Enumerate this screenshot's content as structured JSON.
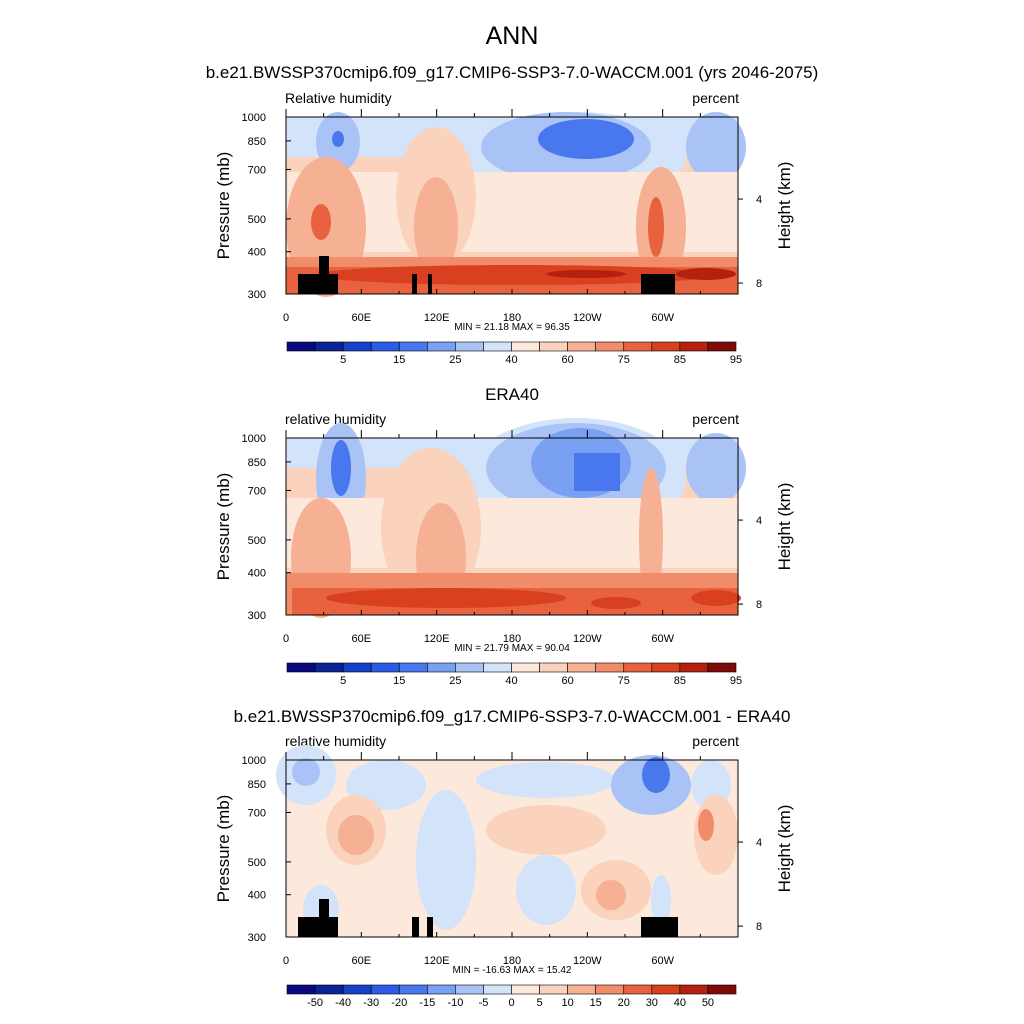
{
  "figure_title": "ANN",
  "chart_data": [
    {
      "type": "heatmap",
      "title": "b.e21.BWSSP370cmip6.f09_g17.CMIP6-SSP3-7.0-WACCM.001 (yrs 2046-2075)",
      "left_label": "Relative humidity",
      "right_label": "percent",
      "ylabel": "Pressure (mb)",
      "ylabel_right": "Height (km)",
      "y_ticks": [
        "300",
        "400",
        "500",
        "700",
        "850",
        "1000"
      ],
      "y_tick_values": [
        300,
        400,
        500,
        700,
        850,
        1000
      ],
      "height_ticks": [
        "8",
        "4"
      ],
      "height_tick_values": [
        8,
        4
      ],
      "x_ticks": [
        "0",
        "60E",
        "120E",
        "180",
        "120W",
        "60W"
      ],
      "x_tick_values": [
        0,
        60,
        120,
        180,
        240,
        300
      ],
      "xlim": [
        0,
        360
      ],
      "ylim": [
        1000,
        300
      ],
      "stats": "MIN =  21.18  MAX =  96.35",
      "min": 21.18,
      "max": 96.35,
      "colorbar_labels": [
        "5",
        "15",
        "25",
        "40",
        "60",
        "75",
        "85",
        "95"
      ],
      "colorbar_levels": [
        5,
        10,
        15,
        20,
        25,
        30,
        40,
        50,
        60,
        65,
        70,
        75,
        80,
        85,
        90,
        95
      ],
      "terrain_masked": true
    },
    {
      "type": "heatmap",
      "title": "ERA40",
      "left_label": "relative humidity",
      "right_label": "percent",
      "ylabel": "Pressure (mb)",
      "ylabel_right": "Height (km)",
      "y_ticks": [
        "300",
        "400",
        "500",
        "700",
        "850",
        "1000"
      ],
      "y_tick_values": [
        300,
        400,
        500,
        700,
        850,
        1000
      ],
      "height_ticks": [
        "8",
        "4"
      ],
      "height_tick_values": [
        8,
        4
      ],
      "x_ticks": [
        "0",
        "60E",
        "120E",
        "180",
        "120W",
        "60W"
      ],
      "x_tick_values": [
        0,
        60,
        120,
        180,
        240,
        300
      ],
      "xlim": [
        0,
        360
      ],
      "ylim": [
        1000,
        300
      ],
      "stats": "MIN =  21.79  MAX =  90.04",
      "min": 21.79,
      "max": 90.04,
      "colorbar_labels": [
        "5",
        "15",
        "25",
        "40",
        "60",
        "75",
        "85",
        "95"
      ],
      "colorbar_levels": [
        5,
        10,
        15,
        20,
        25,
        30,
        40,
        50,
        60,
        65,
        70,
        75,
        80,
        85,
        90,
        95
      ],
      "terrain_masked": false
    },
    {
      "type": "heatmap",
      "title": "b.e21.BWSSP370cmip6.f09_g17.CMIP6-SSP3-7.0-WACCM.001 - ERA40",
      "left_label": "relative humidity",
      "right_label": "percent",
      "ylabel": "Pressure (mb)",
      "ylabel_right": "Height (km)",
      "y_ticks": [
        "300",
        "400",
        "500",
        "700",
        "850",
        "1000"
      ],
      "y_tick_values": [
        300,
        400,
        500,
        700,
        850,
        1000
      ],
      "height_ticks": [
        "8",
        "4"
      ],
      "height_tick_values": [
        8,
        4
      ],
      "x_ticks": [
        "0",
        "60E",
        "120E",
        "180",
        "120W",
        "60W"
      ],
      "x_tick_values": [
        0,
        60,
        120,
        180,
        240,
        300
      ],
      "xlim": [
        0,
        360
      ],
      "ylim": [
        1000,
        300
      ],
      "stats": "MIN = -16.63  MAX =  15.42",
      "min": -16.63,
      "max": 15.42,
      "colorbar_labels": [
        "-50",
        "-40",
        "-30",
        "-20",
        "-15",
        "-10",
        "-5",
        "0",
        "5",
        "10",
        "15",
        "20",
        "30",
        "40",
        "50"
      ],
      "colorbar_levels": [
        -50,
        -40,
        -30,
        -20,
        -15,
        -10,
        -5,
        0,
        5,
        10,
        15,
        20,
        30,
        40,
        50
      ],
      "terrain_masked": true
    }
  ],
  "colors": {
    "palette": [
      "#0a0a80",
      "#0b2396",
      "#1540c8",
      "#2a5be6",
      "#4877ee",
      "#7aa0f2",
      "#a9c3f6",
      "#d3e3fa",
      "#fde9dc",
      "#fbd2bb",
      "#f6b093",
      "#f08c6a",
      "#e8623f",
      "#d8401f",
      "#b5210f",
      "#7f0a0a"
    ],
    "terrain": "#000000"
  }
}
